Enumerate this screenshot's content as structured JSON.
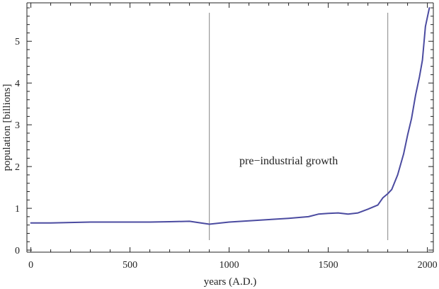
{
  "chart_data": {
    "type": "line",
    "title": "",
    "xlabel": "years (A.D.)",
    "ylabel": "population [billions]",
    "xlim": [
      -20,
      2030
    ],
    "ylim": [
      -0.05,
      5.92
    ],
    "x_ticks": [
      0,
      500,
      1000,
      1500,
      2000
    ],
    "y_ticks": [
      0,
      1,
      2,
      3,
      4,
      5
    ],
    "grid": false,
    "annotation": {
      "text": "pre−industrial growth",
      "x": 1300,
      "y": 2.05
    },
    "vertical_markers": [
      900,
      1800
    ],
    "series": [
      {
        "color": "#4b4ba0",
        "points": [
          [
            0,
            0.65
          ],
          [
            100,
            0.65
          ],
          [
            200,
            0.66
          ],
          [
            300,
            0.67
          ],
          [
            400,
            0.67
          ],
          [
            500,
            0.67
          ],
          [
            600,
            0.67
          ],
          [
            700,
            0.68
          ],
          [
            800,
            0.69
          ],
          [
            900,
            0.62
          ],
          [
            1000,
            0.67
          ],
          [
            1100,
            0.7
          ],
          [
            1200,
            0.73
          ],
          [
            1300,
            0.76
          ],
          [
            1400,
            0.8
          ],
          [
            1450,
            0.86
          ],
          [
            1500,
            0.88
          ],
          [
            1550,
            0.89
          ],
          [
            1600,
            0.86
          ],
          [
            1650,
            0.89
          ],
          [
            1700,
            0.98
          ],
          [
            1750,
            1.08
          ],
          [
            1775,
            1.25
          ],
          [
            1800,
            1.35
          ],
          [
            1820,
            1.45
          ],
          [
            1850,
            1.8
          ],
          [
            1880,
            2.3
          ],
          [
            1900,
            2.75
          ],
          [
            1920,
            3.15
          ],
          [
            1940,
            3.7
          ],
          [
            1960,
            4.15
          ],
          [
            1975,
            4.55
          ],
          [
            1990,
            5.35
          ],
          [
            2010,
            5.8
          ]
        ]
      }
    ]
  }
}
